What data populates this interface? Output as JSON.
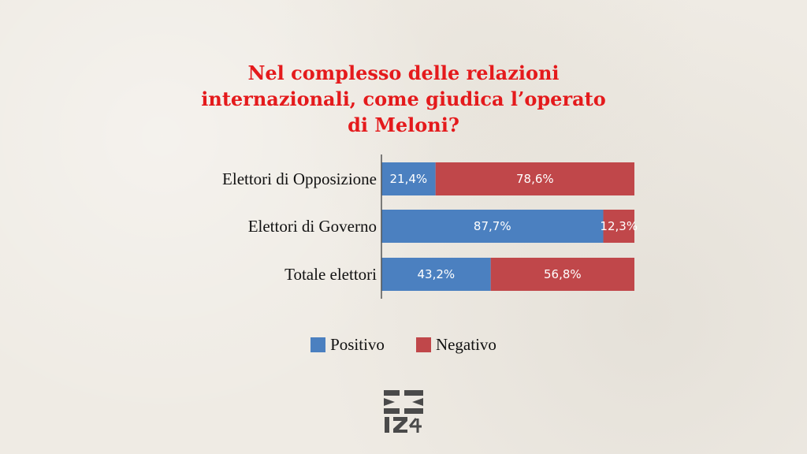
{
  "title_lines": [
    "Nel complesso delle relazioni",
    "internazionali, come giudica l’operato",
    "di Meloni?"
  ],
  "colors": {
    "title": "#e41a1c",
    "positivo": "#4b80c0",
    "negativo": "#c0474a",
    "logo": "#4a4a4a"
  },
  "chart_data": {
    "type": "bar",
    "orientation": "horizontal",
    "stacked": true,
    "title": "Nel complesso delle relazioni internazionali, come giudica l’operato di Meloni?",
    "categories": [
      "Elettori di Opposizione",
      "Elettori di Governo",
      "Totale elettori"
    ],
    "series": [
      {
        "name": "Positivo",
        "values": [
          21.4,
          87.7,
          43.2
        ],
        "labels": [
          "21,4%",
          "87,7%",
          "43,2%"
        ]
      },
      {
        "name": "Negativo",
        "values": [
          78.6,
          12.3,
          56.8
        ],
        "labels": [
          "78,6%",
          "12,3%",
          "56,8%"
        ]
      }
    ],
    "xlim": [
      0,
      100
    ],
    "grid": false,
    "legend_position": "bottom"
  },
  "legend": [
    {
      "label": "Positivo",
      "icon": "square-swatch"
    },
    {
      "label": "Negativo",
      "icon": "square-swatch"
    }
  ],
  "logo": {
    "icon": "iz-logo-icon"
  }
}
